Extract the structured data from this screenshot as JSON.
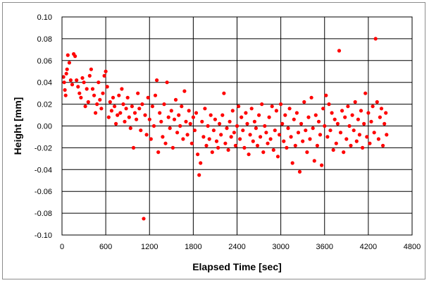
{
  "chart_data": {
    "type": "scatter",
    "xlabel": "Elapsed Time [sec]",
    "ylabel": "Height [mm]",
    "xlim": [
      0,
      4800
    ],
    "ylim": [
      -0.1,
      0.1
    ],
    "x_ticks": [
      "0",
      "600",
      "1200",
      "1800",
      "2400",
      "3000",
      "3600",
      "4200",
      "4800"
    ],
    "y_ticks": [
      "0.10",
      "0.08",
      "0.06",
      "0.04",
      "0.02",
      "0.00",
      "-0.02",
      "-0.04",
      "-0.06",
      "-0.08",
      "-0.10"
    ],
    "grid": true,
    "marker_color": "#ff0000",
    "series": [
      {
        "values": [
          [
            20,
            0.045
          ],
          [
            30,
            0.04
          ],
          [
            40,
            0.033
          ],
          [
            50,
            0.028
          ],
          [
            60,
            0.048
          ],
          [
            70,
            0.052
          ],
          [
            80,
            0.065
          ],
          [
            100,
            0.058
          ],
          [
            120,
            0.042
          ],
          [
            140,
            0.038
          ],
          [
            160,
            0.066
          ],
          [
            180,
            0.064
          ],
          [
            200,
            0.042
          ],
          [
            220,
            0.036
          ],
          [
            240,
            0.03
          ],
          [
            260,
            0.026
          ],
          [
            280,
            0.044
          ],
          [
            300,
            0.04
          ],
          [
            320,
            0.018
          ],
          [
            340,
            0.034
          ],
          [
            360,
            0.022
          ],
          [
            380,
            0.046
          ],
          [
            400,
            0.052
          ],
          [
            420,
            0.034
          ],
          [
            440,
            0.028
          ],
          [
            460,
            0.012
          ],
          [
            480,
            0.02
          ],
          [
            500,
            0.04
          ],
          [
            520,
            0.024
          ],
          [
            540,
            0.016
          ],
          [
            560,
            0.03
          ],
          [
            580,
            0.046
          ],
          [
            600,
            0.05
          ],
          [
            620,
            0.036
          ],
          [
            640,
            0.008
          ],
          [
            660,
            0.022
          ],
          [
            680,
            0.014
          ],
          [
            700,
            0.026
          ],
          [
            720,
            0.018
          ],
          [
            740,
            0.002
          ],
          [
            760,
            0.01
          ],
          [
            780,
            0.028
          ],
          [
            800,
            0.012
          ],
          [
            820,
            0.034
          ],
          [
            840,
            0.02
          ],
          [
            860,
            0.004
          ],
          [
            880,
            0.016
          ],
          [
            900,
            0.026
          ],
          [
            920,
            0.008
          ],
          [
            940,
            -0.002
          ],
          [
            960,
            0.018
          ],
          [
            980,
            -0.02
          ],
          [
            1000,
            0.012
          ],
          [
            1020,
            0.006
          ],
          [
            1040,
            0.03
          ],
          [
            1060,
            0.016
          ],
          [
            1080,
            -0.004
          ],
          [
            1100,
            0.02
          ],
          [
            1120,
            -0.085
          ],
          [
            1140,
            0.01
          ],
          [
            1160,
            -0.008
          ],
          [
            1180,
            0.026
          ],
          [
            1200,
            0.006
          ],
          [
            1220,
            -0.012
          ],
          [
            1240,
            0.018
          ],
          [
            1260,
            0.0
          ],
          [
            1280,
            0.028
          ],
          [
            1300,
            0.042
          ],
          [
            1320,
            -0.024
          ],
          [
            1340,
            0.012
          ],
          [
            1360,
            0.004
          ],
          [
            1380,
            -0.01
          ],
          [
            1400,
            0.02
          ],
          [
            1420,
            -0.016
          ],
          [
            1440,
            0.04
          ],
          [
            1460,
            0.008
          ],
          [
            1480,
            -0.002
          ],
          [
            1500,
            0.014
          ],
          [
            1520,
            -0.02
          ],
          [
            1540,
            0.006
          ],
          [
            1560,
            0.024
          ],
          [
            1580,
            -0.006
          ],
          [
            1600,
            0.01
          ],
          [
            1620,
            0.0
          ],
          [
            1640,
            0.018
          ],
          [
            1660,
            -0.012
          ],
          [
            1680,
            0.032
          ],
          [
            1700,
            0.004
          ],
          [
            1720,
            -0.008
          ],
          [
            1740,
            0.014
          ],
          [
            1760,
            0.002
          ],
          [
            1780,
            -0.016
          ],
          [
            1800,
            0.008
          ],
          [
            1820,
            -0.004
          ],
          [
            1840,
            0.012
          ],
          [
            1860,
            -0.026
          ],
          [
            1880,
            -0.045
          ],
          [
            1900,
            -0.034
          ],
          [
            1920,
            0.004
          ],
          [
            1940,
            -0.01
          ],
          [
            1960,
            0.016
          ],
          [
            1980,
            -0.018
          ],
          [
            2000,
            0.0
          ],
          [
            2020,
            -0.012
          ],
          [
            2040,
            0.01
          ],
          [
            2060,
            -0.024
          ],
          [
            2080,
            -0.004
          ],
          [
            2100,
            0.006
          ],
          [
            2120,
            -0.014
          ],
          [
            2140,
            -0.02
          ],
          [
            2160,
            0.002
          ],
          [
            2180,
            -0.008
          ],
          [
            2200,
            0.01
          ],
          [
            2220,
            0.03
          ],
          [
            2240,
            -0.016
          ],
          [
            2260,
            -0.002
          ],
          [
            2280,
            -0.022
          ],
          [
            2300,
            0.004
          ],
          [
            2320,
            -0.01
          ],
          [
            2340,
            0.014
          ],
          [
            2360,
            -0.006
          ],
          [
            2380,
            -0.018
          ],
          [
            2400,
            0.0
          ],
          [
            2420,
            0.018
          ],
          [
            2440,
            -0.012
          ],
          [
            2460,
            0.008
          ],
          [
            2480,
            -0.004
          ],
          [
            2500,
            -0.02
          ],
          [
            2520,
            0.012
          ],
          [
            2540,
            0.002
          ],
          [
            2560,
            -0.026
          ],
          [
            2580,
            -0.008
          ],
          [
            2600,
            0.016
          ],
          [
            2620,
            -0.014
          ],
          [
            2640,
            0.004
          ],
          [
            2660,
            -0.002
          ],
          [
            2680,
            -0.018
          ],
          [
            2700,
            0.01
          ],
          [
            2720,
            -0.01
          ],
          [
            2740,
            0.02
          ],
          [
            2760,
            -0.024
          ],
          [
            2780,
            0.0
          ],
          [
            2800,
            -0.006
          ],
          [
            2820,
            -0.016
          ],
          [
            2840,
            0.008
          ],
          [
            2860,
            -0.012
          ],
          [
            2880,
            0.018
          ],
          [
            2900,
            -0.022
          ],
          [
            2920,
            -0.004
          ],
          [
            2940,
            0.014
          ],
          [
            2960,
            -0.028
          ],
          [
            2980,
            -0.008
          ],
          [
            3000,
            0.02
          ],
          [
            3020,
            0.002
          ],
          [
            3040,
            -0.014
          ],
          [
            3060,
            0.01
          ],
          [
            3080,
            -0.02
          ],
          [
            3100,
            -0.002
          ],
          [
            3120,
            0.016
          ],
          [
            3140,
            -0.01
          ],
          [
            3160,
            -0.034
          ],
          [
            3180,
            0.006
          ],
          [
            3200,
            -0.018
          ],
          [
            3220,
            0.012
          ],
          [
            3240,
            -0.006
          ],
          [
            3260,
            -0.042
          ],
          [
            3280,
            0.002
          ],
          [
            3300,
            -0.014
          ],
          [
            3320,
            0.022
          ],
          [
            3340,
            -0.004
          ],
          [
            3360,
            -0.024
          ],
          [
            3380,
            0.008
          ],
          [
            3400,
            -0.012
          ],
          [
            3420,
            0.026
          ],
          [
            3440,
            -0.002
          ],
          [
            3460,
            -0.032
          ],
          [
            3480,
            0.01
          ],
          [
            3500,
            -0.018
          ],
          [
            3520,
            0.004
          ],
          [
            3540,
            -0.008
          ],
          [
            3560,
            -0.036
          ],
          [
            3580,
            0.016
          ],
          [
            3600,
            0.0
          ],
          [
            3620,
            0.028
          ],
          [
            3640,
            -0.01
          ],
          [
            3660,
            0.02
          ],
          [
            3680,
            -0.004
          ],
          [
            3700,
            0.012
          ],
          [
            3720,
            -0.022
          ],
          [
            3740,
            0.006
          ],
          [
            3760,
            -0.016
          ],
          [
            3780,
            0.002
          ],
          [
            3800,
            0.069
          ],
          [
            3820,
            -0.006
          ],
          [
            3840,
            0.014
          ],
          [
            3860,
            -0.024
          ],
          [
            3880,
            0.008
          ],
          [
            3900,
            -0.012
          ],
          [
            3920,
            0.018
          ],
          [
            3940,
            0.0
          ],
          [
            3960,
            -0.018
          ],
          [
            3980,
            0.01
          ],
          [
            4000,
            -0.004
          ],
          [
            4020,
            0.022
          ],
          [
            4040,
            -0.014
          ],
          [
            4060,
            0.006
          ],
          [
            4080,
            -0.008
          ],
          [
            4100,
            0.014
          ],
          [
            4120,
            -0.02
          ],
          [
            4140,
            0.002
          ],
          [
            4160,
            0.03
          ],
          [
            4180,
            -0.01
          ],
          [
            4200,
            0.012
          ],
          [
            4220,
            -0.016
          ],
          [
            4240,
            0.004
          ],
          [
            4260,
            0.018
          ],
          [
            4280,
            -0.006
          ],
          [
            4300,
            0.08
          ],
          [
            4320,
            0.022
          ],
          [
            4340,
            -0.012
          ],
          [
            4360,
            0.008
          ],
          [
            4380,
            0.016
          ],
          [
            4400,
            -0.018
          ],
          [
            4420,
            0.002
          ],
          [
            4440,
            0.012
          ],
          [
            4450,
            -0.008
          ]
        ]
      }
    ]
  }
}
